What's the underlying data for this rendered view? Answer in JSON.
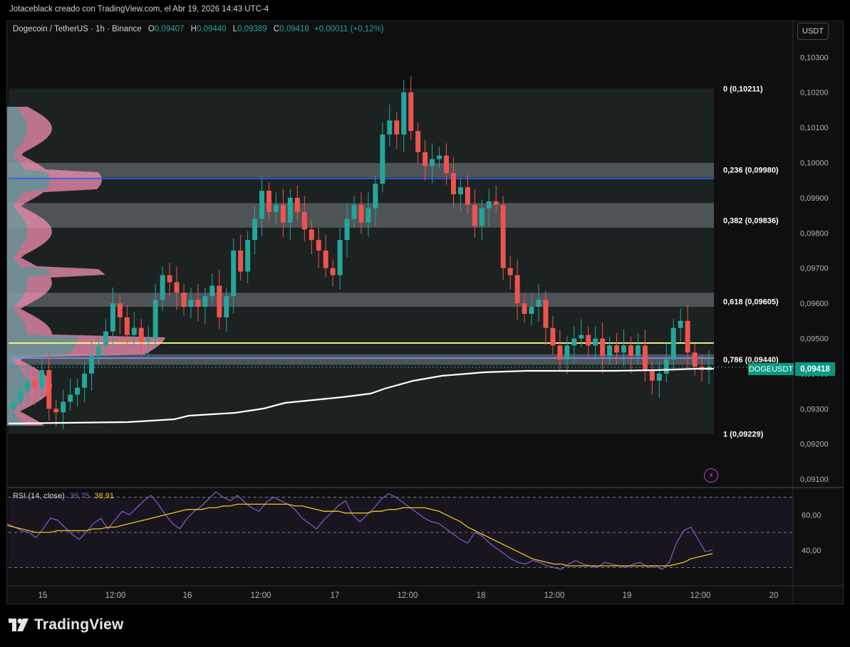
{
  "header": {
    "attribution": "Jotaceblack creado con TradingView.com, el Abr 19, 2026 14:43 UTC-4"
  },
  "legend": {
    "symbol": "Dogecoin / TetherUS · 1h · Binance",
    "open_label": "O",
    "open": "0,09407",
    "high_label": "H",
    "high": "0,09440",
    "low_label": "L",
    "low": "0,09389",
    "close_label": "C",
    "close": "0,09418",
    "change": "+0,00011 (+0,12%)"
  },
  "currency_button": "USDT",
  "price_label": {
    "symbol": "DOGEUSDT",
    "value": "0,09418"
  },
  "rsi_legend": {
    "name": "RSI (14, close)",
    "rsi": "39,75",
    "ma": "38,91"
  },
  "brand": {
    "name": "TradingView"
  },
  "colors": {
    "up": "#26a69a",
    "down": "#ef5350",
    "rsi": "#7e57c2",
    "rsi_ma": "#f0c419",
    "fib_band": "#787b86"
  },
  "chart_data": [
    {
      "type": "candlestick",
      "title": "Dogecoin / TetherUS · 1h · Binance",
      "y_ticks": [
        "0,10300",
        "0,10200",
        "0,10100",
        "0,10000",
        "0,09900",
        "0,09800",
        "0,09700",
        "0,09600",
        "0,09500",
        "0,09400",
        "0,09300",
        "0,09200",
        "0,09100"
      ],
      "y_tick_values": [
        0.103,
        0.102,
        0.101,
        0.1,
        0.099,
        0.098,
        0.097,
        0.096,
        0.095,
        0.094,
        0.093,
        0.092,
        0.091
      ],
      "x_ticks": [
        "15",
        "12:00",
        "16",
        "12:00",
        "17",
        "12:00",
        "18",
        "12:00",
        "19",
        "12:00",
        "20"
      ],
      "fib_levels": [
        {
          "label": "0 (0,10211)",
          "value": 0.10211
        },
        {
          "label": "0,236 (0,09980)",
          "value": 0.0998
        },
        {
          "label": "0,382 (0,09836)",
          "value": 0.09836
        },
        {
          "label": "0,618 (0,09605)",
          "value": 0.09605
        },
        {
          "label": "0,786 (0,09440)",
          "value": 0.0944
        },
        {
          "label": "1 (0,09229)",
          "value": 0.09229
        }
      ],
      "horizontal_lines": [
        {
          "color": "#2962ff",
          "value": 0.09955
        },
        {
          "color": "#f5f58a",
          "value": 0.09487
        },
        {
          "color": "#6f8ff0",
          "value": 0.09444
        }
      ],
      "last_price": 0.09418,
      "close_path": [
        0.0932,
        0.0935,
        0.0938,
        0.0936,
        0.0941,
        0.093,
        0.0929,
        0.0932,
        0.0934,
        0.0936,
        0.094,
        0.0945,
        0.0948,
        0.0952,
        0.096,
        0.0956,
        0.0951,
        0.0953,
        0.0949,
        0.095,
        0.0961,
        0.0968,
        0.0966,
        0.0963,
        0.0959,
        0.0961,
        0.0959,
        0.0962,
        0.0965,
        0.0956,
        0.0962,
        0.0975,
        0.0969,
        0.0978,
        0.0984,
        0.0992,
        0.0986,
        0.0988,
        0.0983,
        0.099,
        0.0986,
        0.0981,
        0.0978,
        0.0975,
        0.097,
        0.0968,
        0.0978,
        0.0984,
        0.0988,
        0.0983,
        0.0987,
        0.0994,
        0.1008,
        0.1012,
        0.1008,
        0.102,
        0.1009,
        0.1003,
        0.0999,
        0.1001,
        0.1002,
        0.0997,
        0.0991,
        0.0993,
        0.0988,
        0.0982,
        0.0987,
        0.0989,
        0.0988,
        0.097,
        0.0968,
        0.096,
        0.0957,
        0.0959,
        0.0961,
        0.0953,
        0.0948,
        0.0944,
        0.0948,
        0.095,
        0.0951,
        0.0948,
        0.095,
        0.0945,
        0.0948,
        0.0946,
        0.0948,
        0.0945,
        0.0948,
        0.0941,
        0.0938,
        0.094,
        0.0944,
        0.0953,
        0.0955,
        0.0946,
        0.0942,
        0.0941,
        0.0942
      ],
      "volume_profile": "horizontal, left side"
    },
    {
      "type": "line",
      "title": "RSI (14, close)",
      "y_ticks": [
        "60,00",
        "40,00"
      ],
      "y_tick_values": [
        60,
        40
      ],
      "bands": [
        70,
        50,
        30
      ],
      "series": [
        {
          "name": "RSI",
          "values": [
            55,
            53,
            51,
            50,
            47,
            52,
            58,
            57,
            53,
            49,
            46,
            50,
            55,
            58,
            52,
            57,
            62,
            60,
            64,
            68,
            71,
            66,
            60,
            55,
            52,
            58,
            62,
            65,
            69,
            73,
            70,
            68,
            71,
            67,
            64,
            62,
            67,
            70,
            68,
            66,
            63,
            58,
            55,
            52,
            57,
            61,
            65,
            68,
            60,
            56,
            60,
            64,
            69,
            72,
            70,
            67,
            64,
            61,
            58,
            56,
            55,
            52,
            49,
            46,
            44,
            50,
            48,
            44,
            41,
            38,
            35,
            33,
            32,
            34,
            33,
            31,
            30,
            29,
            32,
            34,
            32,
            31,
            30,
            33,
            32,
            31,
            30,
            32,
            33,
            30,
            31,
            29,
            33,
            44,
            51,
            53,
            46,
            39,
            40
          ]
        },
        {
          "name": "MA",
          "values": [
            54,
            53,
            52,
            51,
            50,
            50,
            50,
            51,
            51,
            51,
            51,
            51,
            52,
            52,
            53,
            53,
            54,
            55,
            56,
            57,
            58,
            59,
            60,
            61,
            62,
            63,
            63,
            63,
            64,
            64,
            65,
            65,
            66,
            66,
            66,
            66,
            66,
            66,
            66,
            66,
            65,
            65,
            64,
            63,
            62,
            62,
            62,
            61,
            61,
            61,
            61,
            62,
            62,
            63,
            63,
            64,
            64,
            64,
            64,
            63,
            62,
            60,
            58,
            56,
            53,
            51,
            49,
            47,
            45,
            43,
            41,
            39,
            37,
            35,
            34,
            33,
            32,
            32,
            31,
            31,
            31,
            31,
            31,
            31,
            31,
            31,
            31,
            31,
            31,
            31,
            31,
            31,
            31,
            32,
            33,
            35,
            36,
            37,
            38
          ]
        }
      ]
    }
  ]
}
